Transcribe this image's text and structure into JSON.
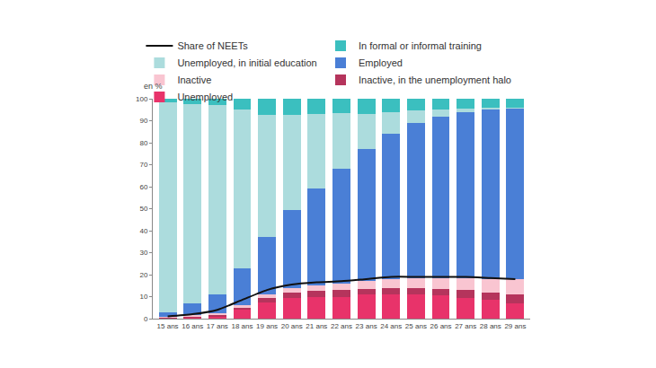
{
  "chart_data": {
    "type": "bar",
    "stacked": true,
    "grid": false,
    "legend": "top",
    "y_label": "en %",
    "categories": [
      "15 ans",
      "16 ans",
      "17 ans",
      "18 ans",
      "19 ans",
      "20 ans",
      "21 ans",
      "22 ans",
      "23 ans",
      "24 ans",
      "25 ans",
      "26 ans",
      "27 ans",
      "28 ans",
      "29 ans"
    ],
    "ylim": [
      0,
      100
    ],
    "yticks": [
      0,
      10,
      20,
      30,
      40,
      50,
      60,
      70,
      80,
      90,
      100
    ],
    "series": [
      {
        "name": "Unemployed",
        "type": "bar",
        "color": "#e8336a",
        "values": [
          0.2,
          0.5,
          1,
          4,
          7.5,
          9.5,
          10,
          10,
          11,
          11,
          11,
          10.5,
          9.5,
          8.5,
          7
        ]
      },
      {
        "name": "Inactive, in the unemployment halo",
        "type": "bar",
        "color": "#b5345c",
        "values": [
          0.1,
          0.2,
          0.5,
          1,
          2,
          2.5,
          2.5,
          3,
          2.5,
          3,
          3,
          3,
          3.5,
          3.5,
          4
        ]
      },
      {
        "name": "Inactive",
        "type": "bar",
        "color": "#f9c5d1",
        "values": [
          0.7,
          1,
          1,
          1,
          1.5,
          2,
          2.5,
          3,
          3.5,
          4,
          4.5,
          5,
          5.5,
          6,
          7
        ]
      },
      {
        "name": "Employed",
        "type": "bar",
        "color": "#4a7fd6",
        "values": [
          2,
          5.3,
          8.5,
          17,
          26,
          35.5,
          44,
          52,
          60,
          66,
          70.5,
          73.5,
          75.5,
          77,
          77.5
        ]
      },
      {
        "name": "Unemployed, in initial education",
        "type": "bar",
        "color": "#acdcdd",
        "values": [
          95.5,
          90.5,
          86,
          72,
          55.5,
          43,
          34,
          25.5,
          16,
          10,
          5.5,
          3,
          1.5,
          1,
          0.5
        ]
      },
      {
        "name": "In formal or informal training",
        "type": "bar",
        "color": "#3bbfbf",
        "values": [
          1.5,
          2.5,
          3,
          5,
          7.5,
          7.5,
          7,
          6.5,
          7,
          6,
          5.5,
          5,
          4.5,
          4,
          4
        ]
      },
      {
        "name": "Share of NEETs",
        "type": "line",
        "color": "#111111",
        "line_style": "solid",
        "values": [
          1,
          2,
          4,
          8.5,
          13,
          15.5,
          16.5,
          17,
          18,
          19,
          19,
          19,
          19,
          18.5,
          18
        ]
      }
    ]
  }
}
